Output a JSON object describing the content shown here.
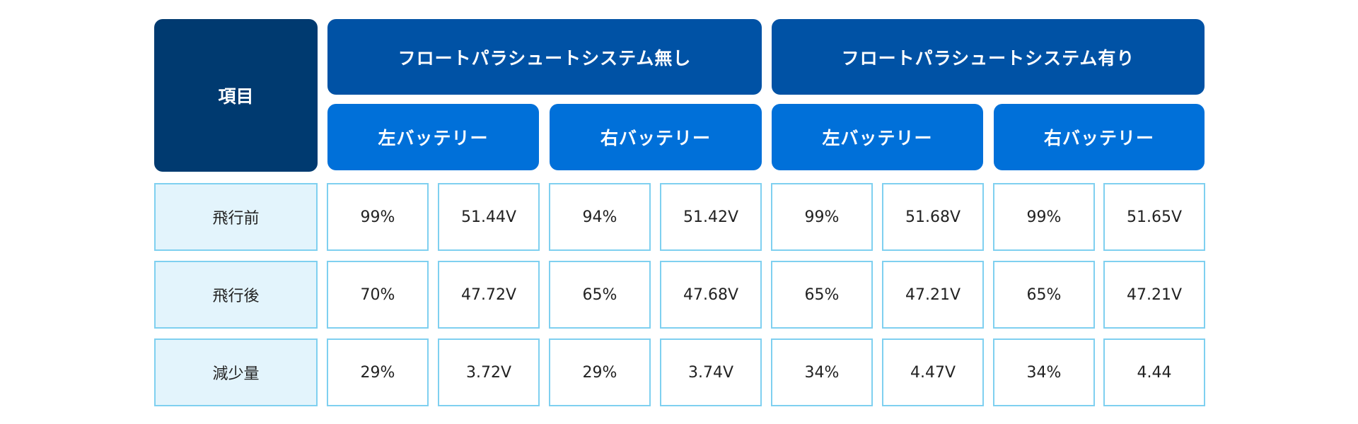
{
  "header": {
    "item_label": "項目",
    "groups": [
      {
        "label": "フロートパラシュートシステム無し",
        "batteries": [
          "左バッテリー",
          "右バッテリー"
        ]
      },
      {
        "label": "フロートパラシュートシステム有り",
        "batteries": [
          "左バッテリー",
          "右バッテリー"
        ]
      }
    ]
  },
  "rows": [
    {
      "label": "飛行前",
      "values": [
        "99%",
        "51.44V",
        "94%",
        "51.42V",
        "99%",
        "51.68V",
        "99%",
        "51.65V"
      ]
    },
    {
      "label": "飛行後",
      "values": [
        "70%",
        "47.72V",
        "65%",
        "47.68V",
        "65%",
        "47.21V",
        "65%",
        "47.21V"
      ]
    },
    {
      "label": "減少量",
      "values": [
        "29%",
        "3.72V",
        "29%",
        "3.74V",
        "34%",
        "4.47V",
        "34%",
        "4.44"
      ]
    }
  ],
  "colors": {
    "item_header": "#003a70",
    "group_header": "#0052a5",
    "sub_header": "#0070d9",
    "row_label_bg": "#e3f4fc",
    "cell_border": "#7fd0f0"
  }
}
